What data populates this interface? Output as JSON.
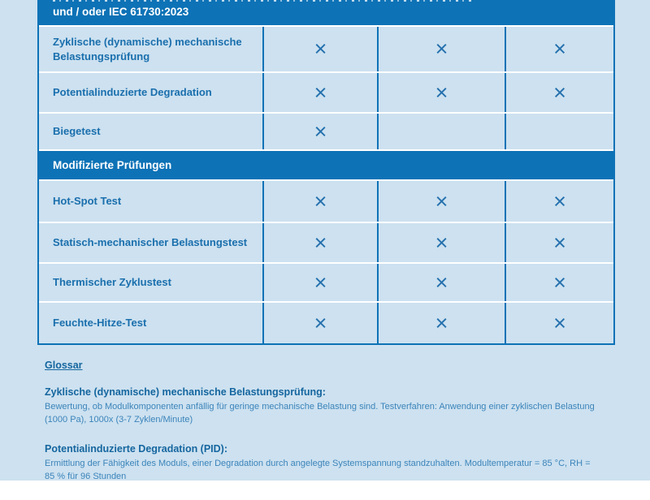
{
  "colors": {
    "accent_blue": "#0d72b6",
    "cell_background": "#cde1f0",
    "label_text": "#1a6fad",
    "body_text": "#3b84ba"
  },
  "table": {
    "header": "und / oder IEC 61730:2023",
    "x_symbol": "×",
    "sections": [
      {
        "header": null,
        "rows": [
          {
            "label": "Zyklische (dynamische) mechanische Belastungsprüfung",
            "marks": [
              true,
              true,
              true
            ]
          },
          {
            "label": "Potentialinduzierte Degradation",
            "marks": [
              true,
              true,
              true
            ]
          },
          {
            "label": "Biegetest",
            "marks": [
              true,
              false,
              false
            ]
          }
        ]
      },
      {
        "header": "Modifizierte Prüfungen",
        "rows": [
          {
            "label": "Hot-Spot Test",
            "marks": [
              true,
              true,
              true
            ]
          },
          {
            "label": "Statisch-mechanischer Belastungstest",
            "marks": [
              true,
              true,
              true
            ]
          },
          {
            "label": "Thermischer Zyklustest",
            "marks": [
              true,
              true,
              true
            ]
          },
          {
            "label": "Feuchte-Hitze-Test",
            "marks": [
              true,
              true,
              true
            ]
          }
        ]
      }
    ]
  },
  "glossary": {
    "title": "Glossar",
    "entries": [
      {
        "term": "Zyklische (dynamische) mechanische Belastungsprüfung:",
        "lines": [
          "Bewertung, ob Modulkomponenten anfällig für geringe mechanische Belastung sind. Testverfahren: Anwendung einer zyklischen Belastung",
          "(1000 Pa), 1000x (3-7 Zyklen/Minute)"
        ]
      },
      {
        "term": "Potentialinduzierte Degradation (PID):",
        "lines": [
          "Ermittlung der Fähigkeit des Moduls, einer Degradation durch angelegte Systemspannung standzuhalten. Modultemperatur = 85 °C, RH =",
          "85 % für 96 Stunden"
        ]
      }
    ]
  }
}
